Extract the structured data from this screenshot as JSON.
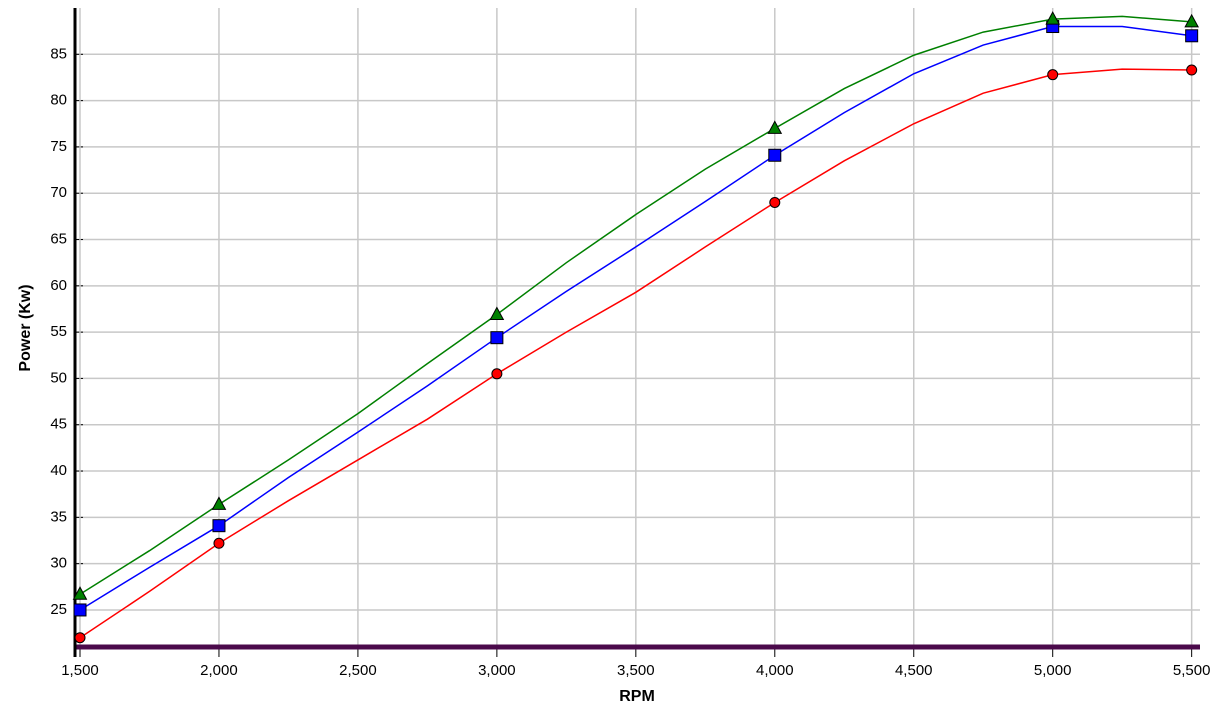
{
  "chart_data": {
    "type": "line",
    "x_label": "RPM",
    "y_label": "Power (Kw)",
    "x": [
      1500,
      1750,
      2000,
      2250,
      2500,
      2750,
      3000,
      3250,
      3500,
      3750,
      4000,
      4250,
      4500,
      4750,
      5000,
      5250,
      5500
    ],
    "markers": [
      1500,
      2000,
      3000,
      4000,
      5000,
      5500
    ],
    "series": [
      {
        "color": "#ff0000",
        "marker": "circle",
        "values": [
          22.0,
          27,
          32.2,
          36.8,
          41.2,
          45.6,
          50.5,
          55,
          59.3,
          64.2,
          69,
          73.5,
          77.5,
          80.8,
          82.8,
          83.4,
          83.3
        ]
      },
      {
        "color": "#0000ff",
        "marker": "square",
        "values": [
          25,
          29.6,
          34.1,
          39.3,
          44.2,
          49.2,
          54.4,
          59.4,
          64.2,
          69.1,
          74.1,
          78.7,
          82.9,
          86,
          88,
          88,
          87
        ]
      },
      {
        "color": "#008000",
        "marker": "triangle",
        "values": [
          26.7,
          31.4,
          36.4,
          41.2,
          46.2,
          51.6,
          56.9,
          62.5,
          67.7,
          72.6,
          77,
          81.3,
          84.9,
          87.4,
          88.8,
          89.1,
          88.5
        ]
      }
    ],
    "xlim": [
      1482,
      5530
    ],
    "xticks": [
      {
        "value": 1500,
        "label": "1,500"
      },
      {
        "value": 2000,
        "label": "2,000"
      },
      {
        "value": 2500,
        "label": "2,500"
      },
      {
        "value": 3000,
        "label": "3,000"
      },
      {
        "value": 3500,
        "label": "3,500"
      },
      {
        "value": 4000,
        "label": "4,000"
      },
      {
        "value": 4500,
        "label": "4,500"
      },
      {
        "value": 5000,
        "label": "5,000"
      },
      {
        "value": 5500,
        "label": "5,500"
      }
    ],
    "ylim": [
      21,
      90
    ],
    "yticks": [
      25,
      30,
      35,
      40,
      45,
      50,
      55,
      60,
      65,
      70,
      75,
      80,
      85
    ],
    "grid": true
  }
}
